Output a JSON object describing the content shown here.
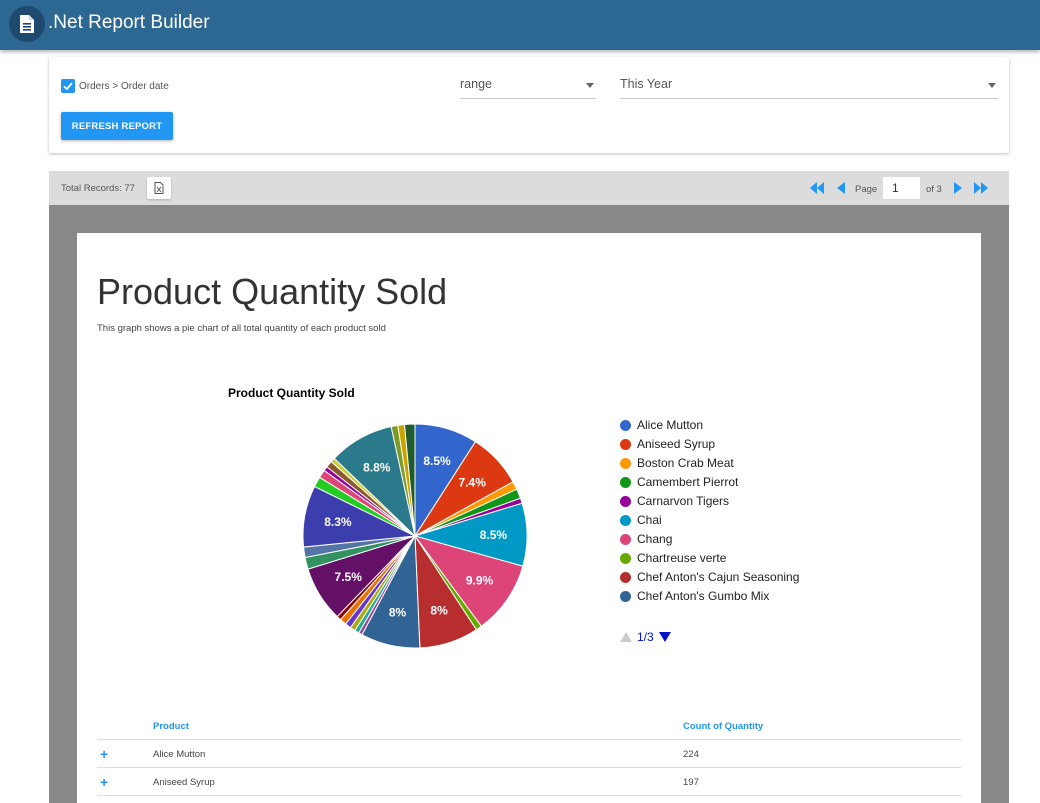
{
  "app": {
    "title": ".Net Report Builder",
    "icon": "document-icon"
  },
  "filters": {
    "field_label": "Orders > Order date",
    "checked": true,
    "operator": "range",
    "value": "This Year",
    "refresh_label": "REFRESH REPORT"
  },
  "report_bar": {
    "total_records": "Total Records: 77",
    "page_label": "Page",
    "current_page": "1",
    "of_label": "of 3"
  },
  "report": {
    "title": "Product Quantity Sold",
    "description": "This graph shows a pie chart of all total quantity of each product sold"
  },
  "chart_data": {
    "type": "pie",
    "title": "Product Quantity Sold",
    "slices": [
      {
        "label": "Alice Mutton",
        "percent": 8.5,
        "color": "#3366cc",
        "show_label": true
      },
      {
        "label": "Aniseed Syrup",
        "percent": 7.4,
        "color": "#dc3912",
        "show_label": true
      },
      {
        "label": "Boston Crab Meat",
        "percent": 1.1,
        "color": "#ff9900",
        "show_label": false
      },
      {
        "label": "Camembert Pierrot",
        "percent": 1.3,
        "color": "#109618",
        "show_label": false
      },
      {
        "label": "Carnarvon Tigers",
        "percent": 0.7,
        "color": "#990099",
        "show_label": false
      },
      {
        "label": "Chai",
        "percent": 8.5,
        "color": "#0099c6",
        "show_label": true
      },
      {
        "label": "Chang",
        "percent": 9.9,
        "color": "#dd4477",
        "show_label": true
      },
      {
        "label": "Chartreuse verte",
        "percent": 0.8,
        "color": "#66aa00",
        "show_label": false
      },
      {
        "label": "Chef Anton's Cajun Seasoning",
        "percent": 8.0,
        "color": "#b82e2e",
        "show_label": true
      },
      {
        "label": "Chef Anton's Gumbo Mix",
        "percent": 8.0,
        "color": "#316395",
        "show_label": true
      },
      {
        "label": "",
        "percent": 0.5,
        "color": "#994499",
        "show_label": false
      },
      {
        "label": "",
        "percent": 0.6,
        "color": "#22aa99",
        "show_label": false
      },
      {
        "label": "",
        "percent": 0.7,
        "color": "#aaaa11",
        "show_label": false
      },
      {
        "label": "",
        "percent": 0.8,
        "color": "#6633cc",
        "show_label": false
      },
      {
        "label": "",
        "percent": 0.9,
        "color": "#e67300",
        "show_label": false
      },
      {
        "label": "",
        "percent": 0.6,
        "color": "#8b0707",
        "show_label": false
      },
      {
        "label": "",
        "percent": 7.5,
        "color": "#651067",
        "show_label": true
      },
      {
        "label": "",
        "percent": 1.6,
        "color": "#329262",
        "show_label": false
      },
      {
        "label": "",
        "percent": 1.4,
        "color": "#5574a6",
        "show_label": false
      },
      {
        "label": "",
        "percent": 8.3,
        "color": "#3b3eac",
        "show_label": true
      },
      {
        "label": "",
        "percent": 1.4,
        "color": "#22cc22",
        "show_label": false
      },
      {
        "label": "",
        "percent": 1.1,
        "color": "#dd4477",
        "show_label": false
      },
      {
        "label": "",
        "percent": 0.6,
        "color": "#990099",
        "show_label": false
      },
      {
        "label": "",
        "percent": 0.9,
        "color": "#8a5a2a",
        "show_label": false
      },
      {
        "label": "",
        "percent": 0.6,
        "color": "#cccc33",
        "show_label": false
      },
      {
        "label": "",
        "percent": 8.8,
        "color": "#2a7a8c",
        "show_label": true
      },
      {
        "label": "",
        "percent": 0.9,
        "color": "#7d9a26",
        "show_label": false
      },
      {
        "label": "",
        "percent": 0.9,
        "color": "#c9a400",
        "show_label": false
      },
      {
        "label": "",
        "percent": 1.4,
        "color": "#1e5b2e",
        "show_label": false
      }
    ],
    "legend": {
      "position": "right",
      "page": "1/3",
      "items": [
        {
          "label": "Alice Mutton",
          "color": "#3366cc"
        },
        {
          "label": "Aniseed Syrup",
          "color": "#dc3912"
        },
        {
          "label": "Boston Crab Meat",
          "color": "#ff9900"
        },
        {
          "label": "Camembert Pierrot",
          "color": "#109618"
        },
        {
          "label": "Carnarvon Tigers",
          "color": "#990099"
        },
        {
          "label": "Chai",
          "color": "#0099c6"
        },
        {
          "label": "Chang",
          "color": "#dd4477"
        },
        {
          "label": "Chartreuse verte",
          "color": "#66aa00"
        },
        {
          "label": "Chef Anton's Cajun Seasoning",
          "color": "#b82e2e"
        },
        {
          "label": "Chef Anton's Gumbo Mix",
          "color": "#316395"
        }
      ]
    }
  },
  "table": {
    "columns": [
      "Product",
      "Count of Quantity"
    ],
    "rows": [
      {
        "product": "Alice Mutton",
        "count": "224"
      },
      {
        "product": "Aniseed Syrup",
        "count": "197"
      }
    ]
  },
  "colors": {
    "appbar": "#2d6893",
    "accent": "#2196f3",
    "legend_pager": "#0011cc"
  }
}
